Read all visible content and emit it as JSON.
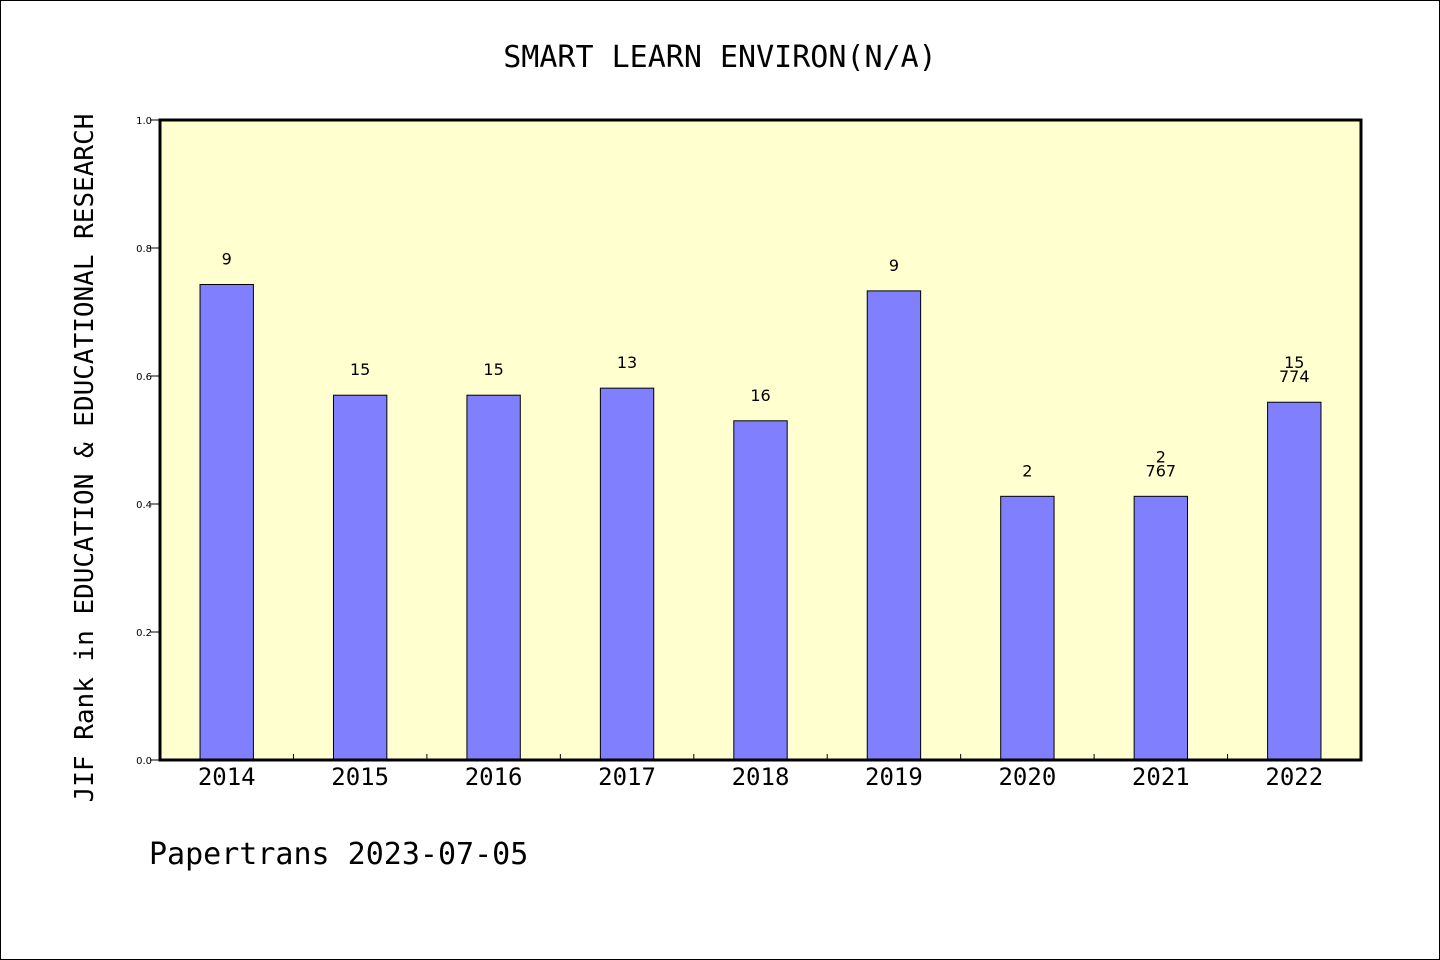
{
  "chart_data": {
    "type": "bar",
    "title": "SMART LEARN ENVIRON(N/A)",
    "xlabel": "",
    "ylabel": "JIF Rank in EDUCATION & EDUCATIONAL RESEARCH",
    "categories": [
      "2014",
      "2015",
      "2016",
      "2017",
      "2018",
      "2019",
      "2020",
      "2021",
      "2022"
    ],
    "values": [
      0.743,
      0.57,
      0.57,
      0.581,
      0.53,
      0.733,
      0.412,
      0.412,
      0.559
    ],
    "bar_labels": [
      [
        "9"
      ],
      [
        "15"
      ],
      [
        "15"
      ],
      [
        "13"
      ],
      [
        "16"
      ],
      [
        "9"
      ],
      [
        "2"
      ],
      [
        "2",
        "767"
      ],
      [
        "15",
        "774"
      ]
    ],
    "ylim": [
      0,
      1.0
    ],
    "yticks": [
      "0.0",
      "0.2",
      "0.4",
      "0.6",
      "0.8",
      "1.0"
    ],
    "grid": false,
    "legend": "none",
    "colors": {
      "bar_fill": "#8080ff",
      "plot_background": "#ffffd0",
      "axis": "#000000"
    }
  },
  "footer": "Papertrans 2023-07-05"
}
